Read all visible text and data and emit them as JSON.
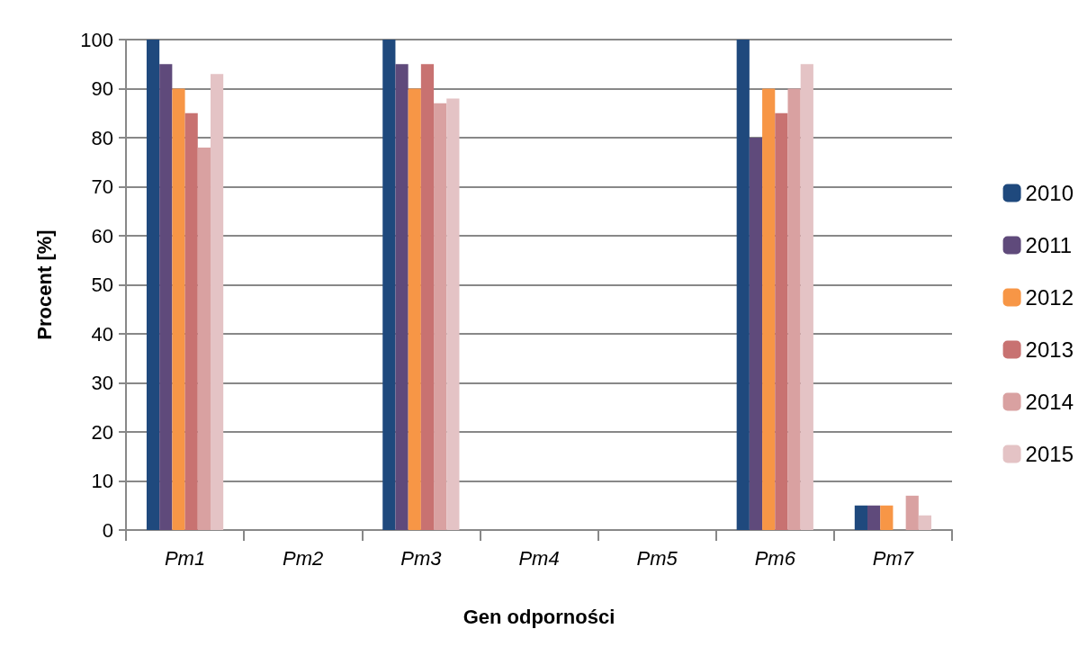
{
  "chart_data": {
    "type": "bar",
    "xlabel": "Gen odporności",
    "ylabel": "Procent [%]",
    "categories": [
      "Pm1",
      "Pm2",
      "Pm3",
      "Pm4",
      "Pm5",
      "Pm6",
      "Pm7"
    ],
    "series": [
      {
        "name": "2010",
        "color": "#1f497d",
        "values": [
          100,
          0,
          100,
          0,
          0,
          100,
          5
        ]
      },
      {
        "name": "2011",
        "color": "#5f4a7b",
        "values": [
          95,
          0,
          95,
          0,
          0,
          80,
          5
        ]
      },
      {
        "name": "2012",
        "color": "#f79646",
        "values": [
          90,
          0,
          90,
          0,
          0,
          90,
          5
        ]
      },
      {
        "name": "2013",
        "color": "#c87271",
        "values": [
          85,
          0,
          95,
          0,
          0,
          85,
          0
        ]
      },
      {
        "name": "2014",
        "color": "#d9a1a1",
        "values": [
          78,
          0,
          87,
          0,
          0,
          90,
          7
        ]
      },
      {
        "name": "2015",
        "color": "#e4c3c5",
        "values": [
          93,
          0,
          88,
          0,
          0,
          95,
          3
        ]
      }
    ],
    "ylim": [
      0,
      100
    ],
    "yticks": [
      0,
      10,
      20,
      30,
      40,
      50,
      60,
      70,
      80,
      90,
      100
    ],
    "grid": "y",
    "legend": "right"
  }
}
